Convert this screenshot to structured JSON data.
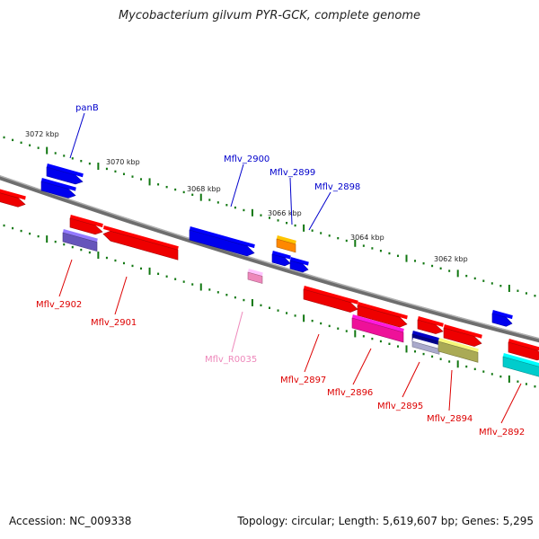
{
  "title": "Mycobacterium gilvum PYR-GCK, complete genome",
  "footer": {
    "accession": "Accession: NC_009338",
    "summary": "Topology: circular; Length: 5,619,607 bp; Genes: 5,295"
  },
  "colors": {
    "blue": "#0000ee",
    "red": "#ee0000",
    "orange": "#ff8800",
    "magenta": "#ee1199",
    "pink": "#ee88bb",
    "slate": "#6655bb",
    "navy": "#000088",
    "olive": "#aaaa55",
    "cyan": "#00cccc",
    "lavender": "#aaaacc",
    "backbone": "#888888",
    "ticks": "#117711"
  },
  "scale": {
    "kbp_labels": [
      "3072 kbp",
      "3070 kbp",
      "3068 kbp",
      "3066 kbp",
      "3064 kbp",
      "3062 kbp"
    ]
  },
  "genes": {
    "top": [
      "panB",
      "Mflv_2900",
      "Mflv_2899",
      "Mflv_2898"
    ],
    "bottom": [
      "Mflv_2902",
      "Mflv_2901",
      "Mflv_R0035",
      "Mflv_2897",
      "Mflv_2896",
      "Mflv_2895",
      "Mflv_2894",
      "Mflv_2892"
    ]
  }
}
